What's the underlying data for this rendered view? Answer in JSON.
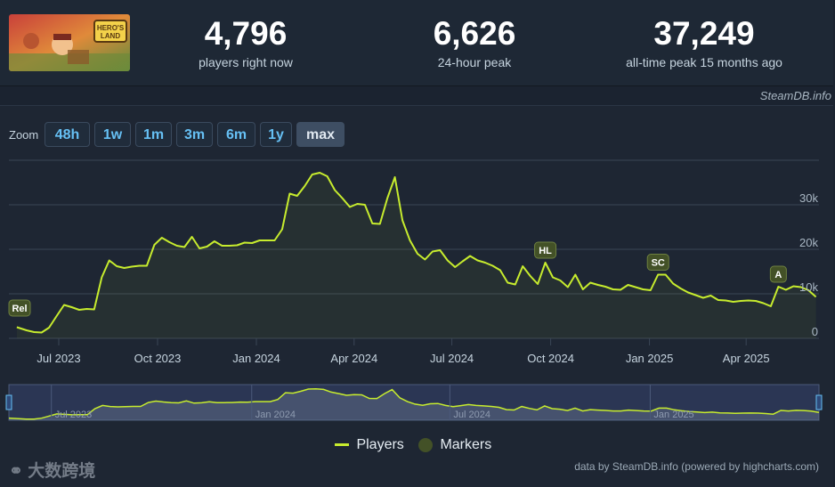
{
  "stats": [
    {
      "value": "4,796",
      "label": "players right now"
    },
    {
      "value": "6,626",
      "label": "24-hour peak"
    },
    {
      "value": "37,249",
      "label": "all-time peak 15 months ago"
    }
  ],
  "game_thumbnail": {
    "logo_text": "HERO'S LAND"
  },
  "credit_top": "SteamDB.info",
  "zoom": {
    "label": "Zoom",
    "buttons": [
      "48h",
      "1w",
      "1m",
      "3m",
      "6m",
      "1y",
      "max"
    ],
    "active": "max"
  },
  "legend": {
    "players": "Players",
    "markers": "Markers"
  },
  "footer_credit": "data by SteamDB.info (powered by highcharts.com)",
  "watermark": "大数跨境",
  "colors": {
    "line": "#c7ec2e",
    "marker_fill": "#435127",
    "background": "#1e2633",
    "accent": "#66c0f4"
  },
  "chart_data": {
    "type": "line",
    "x_tick_labels": [
      "Jul 2023",
      "Oct 2023",
      "Jan 2024",
      "Apr 2024",
      "Jul 2024",
      "Oct 2024",
      "Jan 2025",
      "Apr 2025"
    ],
    "y_tick_labels": [
      "0",
      "10k",
      "20k",
      "30k"
    ],
    "ylim": [
      0,
      40000
    ],
    "grid": true,
    "legend_position": "bottom",
    "series": [
      {
        "name": "Players",
        "points": [
          [
            "2023-05-23",
            2500
          ],
          [
            "2023-06-01",
            1800
          ],
          [
            "2023-06-08",
            1400
          ],
          [
            "2023-06-15",
            1300
          ],
          [
            "2023-06-22",
            2400
          ],
          [
            "2023-06-29",
            5000
          ],
          [
            "2023-07-06",
            7500
          ],
          [
            "2023-07-13",
            7000
          ],
          [
            "2023-07-20",
            6400
          ],
          [
            "2023-07-27",
            6600
          ],
          [
            "2023-08-03",
            6500
          ],
          [
            "2023-08-10",
            13700
          ],
          [
            "2023-08-17",
            17500
          ],
          [
            "2023-08-24",
            16200
          ],
          [
            "2023-08-31",
            15800
          ],
          [
            "2023-09-07",
            16100
          ],
          [
            "2023-09-14",
            16300
          ],
          [
            "2023-09-21",
            16300
          ],
          [
            "2023-09-28",
            21000
          ],
          [
            "2023-10-05",
            22600
          ],
          [
            "2023-10-12",
            21600
          ],
          [
            "2023-10-19",
            20800
          ],
          [
            "2023-10-26",
            20500
          ],
          [
            "2023-11-02",
            22800
          ],
          [
            "2023-11-09",
            20200
          ],
          [
            "2023-11-16",
            20600
          ],
          [
            "2023-11-23",
            21800
          ],
          [
            "2023-11-30",
            20800
          ],
          [
            "2023-12-07",
            20800
          ],
          [
            "2023-12-14",
            20900
          ],
          [
            "2023-12-21",
            21500
          ],
          [
            "2023-12-28",
            21400
          ],
          [
            "2024-01-04",
            22000
          ],
          [
            "2024-01-11",
            22000
          ],
          [
            "2024-01-18",
            22000
          ],
          [
            "2024-01-25",
            24500
          ],
          [
            "2024-02-01",
            32500
          ],
          [
            "2024-02-08",
            32000
          ],
          [
            "2024-02-15",
            34200
          ],
          [
            "2024-02-22",
            36800
          ],
          [
            "2024-02-29",
            37200
          ],
          [
            "2024-03-07",
            36400
          ],
          [
            "2024-03-14",
            33300
          ],
          [
            "2024-03-21",
            31500
          ],
          [
            "2024-03-28",
            29500
          ],
          [
            "2024-04-04",
            30200
          ],
          [
            "2024-04-11",
            30000
          ],
          [
            "2024-04-18",
            25800
          ],
          [
            "2024-04-25",
            25700
          ],
          [
            "2024-05-02",
            31500
          ],
          [
            "2024-05-09",
            36200
          ],
          [
            "2024-05-16",
            26500
          ],
          [
            "2024-05-23",
            22000
          ],
          [
            "2024-05-30",
            19000
          ],
          [
            "2024-06-06",
            17700
          ],
          [
            "2024-06-13",
            19500
          ],
          [
            "2024-06-20",
            19800
          ],
          [
            "2024-06-27",
            17500
          ],
          [
            "2024-07-04",
            16000
          ],
          [
            "2024-07-11",
            17300
          ],
          [
            "2024-07-18",
            18500
          ],
          [
            "2024-07-25",
            17500
          ],
          [
            "2024-08-01",
            17000
          ],
          [
            "2024-08-08",
            16300
          ],
          [
            "2024-08-15",
            15300
          ],
          [
            "2024-08-22",
            12500
          ],
          [
            "2024-08-29",
            12100
          ],
          [
            "2024-09-05",
            16200
          ],
          [
            "2024-09-12",
            14000
          ],
          [
            "2024-09-19",
            12200
          ],
          [
            "2024-09-26",
            17000
          ],
          [
            "2024-10-03",
            13700
          ],
          [
            "2024-10-10",
            13000
          ],
          [
            "2024-10-17",
            11500
          ],
          [
            "2024-10-24",
            14300
          ],
          [
            "2024-10-31",
            11000
          ],
          [
            "2024-11-07",
            12500
          ],
          [
            "2024-11-14",
            12000
          ],
          [
            "2024-11-21",
            11600
          ],
          [
            "2024-11-28",
            11000
          ],
          [
            "2024-12-05",
            10900
          ],
          [
            "2024-12-12",
            12000
          ],
          [
            "2024-12-19",
            11500
          ],
          [
            "2024-12-26",
            11000
          ],
          [
            "2025-01-02",
            10800
          ],
          [
            "2025-01-09",
            14300
          ],
          [
            "2025-01-16",
            14300
          ],
          [
            "2025-01-23",
            12300
          ],
          [
            "2025-01-30",
            11200
          ],
          [
            "2025-02-06",
            10300
          ],
          [
            "2025-02-13",
            9700
          ],
          [
            "2025-02-20",
            9100
          ],
          [
            "2025-02-27",
            9600
          ],
          [
            "2025-03-06",
            8600
          ],
          [
            "2025-03-13",
            8500
          ],
          [
            "2025-03-20",
            8200
          ],
          [
            "2025-03-27",
            8400
          ],
          [
            "2025-04-03",
            8500
          ],
          [
            "2025-04-10",
            8400
          ],
          [
            "2025-04-17",
            7900
          ],
          [
            "2025-04-24",
            7200
          ],
          [
            "2025-05-01",
            11600
          ],
          [
            "2025-05-08",
            10900
          ],
          [
            "2025-05-15",
            11700
          ],
          [
            "2025-05-22",
            11500
          ],
          [
            "2025-05-29",
            10800
          ],
          [
            "2025-06-05",
            9300
          ]
        ]
      }
    ],
    "markers": [
      {
        "label": "Rel",
        "date": "2023-05-23",
        "value": 2500
      },
      {
        "label": "HL",
        "date": "2024-09-26",
        "value": 17000
      },
      {
        "label": "SC",
        "date": "2025-01-09",
        "value": 14300
      },
      {
        "label": "A",
        "date": "2025-05-01",
        "value": 11600
      }
    ],
    "navigator_labels": [
      "Jul 2023",
      "Jan 2024",
      "Jul 2024",
      "Jan 2025"
    ]
  }
}
